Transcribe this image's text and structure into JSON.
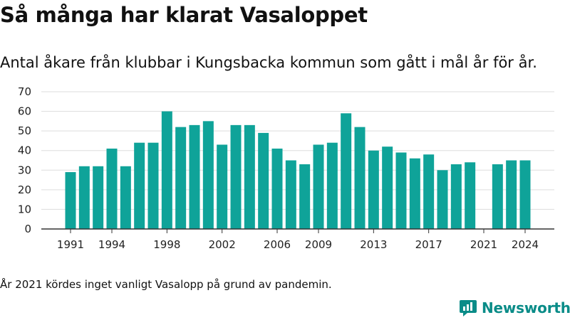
{
  "title": "Så många har klarat Vasaloppet",
  "subtitle": "Antal åkare från klubbar i Kungsbacka kommun som gått i mål år för år.",
  "footnote": "År 2021 kördes inget vanligt Vasalopp på grund av pandemin.",
  "brand": {
    "name": "Newsworthy",
    "color": "#0a8c88"
  },
  "colors": {
    "bar": "#0fa399",
    "grid": "#dddddd",
    "axis": "#333333"
  },
  "chart_data": {
    "type": "bar",
    "title": "",
    "xlabel": "",
    "ylabel": "",
    "x": [
      1991,
      1992,
      1993,
      1994,
      1995,
      1996,
      1997,
      1998,
      1999,
      2000,
      2001,
      2002,
      2003,
      2004,
      2005,
      2006,
      2007,
      2008,
      2009,
      2010,
      2011,
      2012,
      2013,
      2014,
      2015,
      2016,
      2017,
      2018,
      2019,
      2020,
      2021,
      2022,
      2023,
      2024
    ],
    "values": [
      29,
      32,
      32,
      41,
      32,
      44,
      44,
      60,
      52,
      53,
      55,
      43,
      53,
      53,
      49,
      41,
      35,
      33,
      43,
      44,
      59,
      52,
      40,
      42,
      39,
      36,
      38,
      30,
      33,
      34,
      null,
      33,
      35,
      35
    ],
    "x_tick_labels": [
      "1991",
      "1994",
      "1998",
      "2002",
      "2006",
      "2009",
      "2013",
      "2017",
      "2021",
      "2024"
    ],
    "y_ticks": [
      0,
      10,
      20,
      30,
      40,
      50,
      60,
      70
    ],
    "ylim": [
      0,
      70
    ],
    "grid": true,
    "legend": "none"
  }
}
